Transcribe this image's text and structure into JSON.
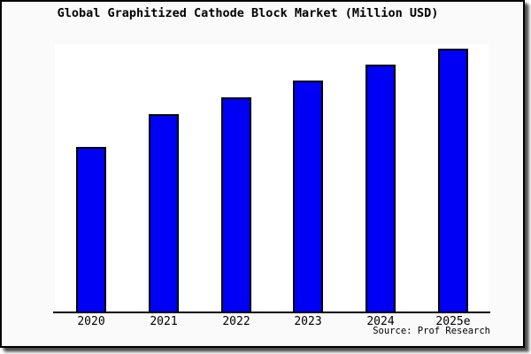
{
  "chart_data": {
    "type": "bar",
    "title": "Global Graphitized Cathode Block Market (Million USD)",
    "categories": [
      "2020",
      "2021",
      "2022",
      "2023",
      "2024",
      "2025e"
    ],
    "values": [
      62.9,
      75.3,
      81.6,
      88.0,
      94.0,
      100.0
    ],
    "value_note": "no numeric y-axis shown; values are relative index with 2025e = 100",
    "xlabel": "",
    "ylabel": "",
    "ylim": [
      0,
      101.7
    ],
    "grid": false,
    "legend": null,
    "bar_fill": "#0000f5",
    "bar_border": "#000000"
  },
  "source": {
    "label": "Source: Prof Research"
  },
  "colors": {
    "frame_background": "#fafafa",
    "plot_background": "#ffffff",
    "frame_border": "#000000",
    "text": "#000000"
  }
}
